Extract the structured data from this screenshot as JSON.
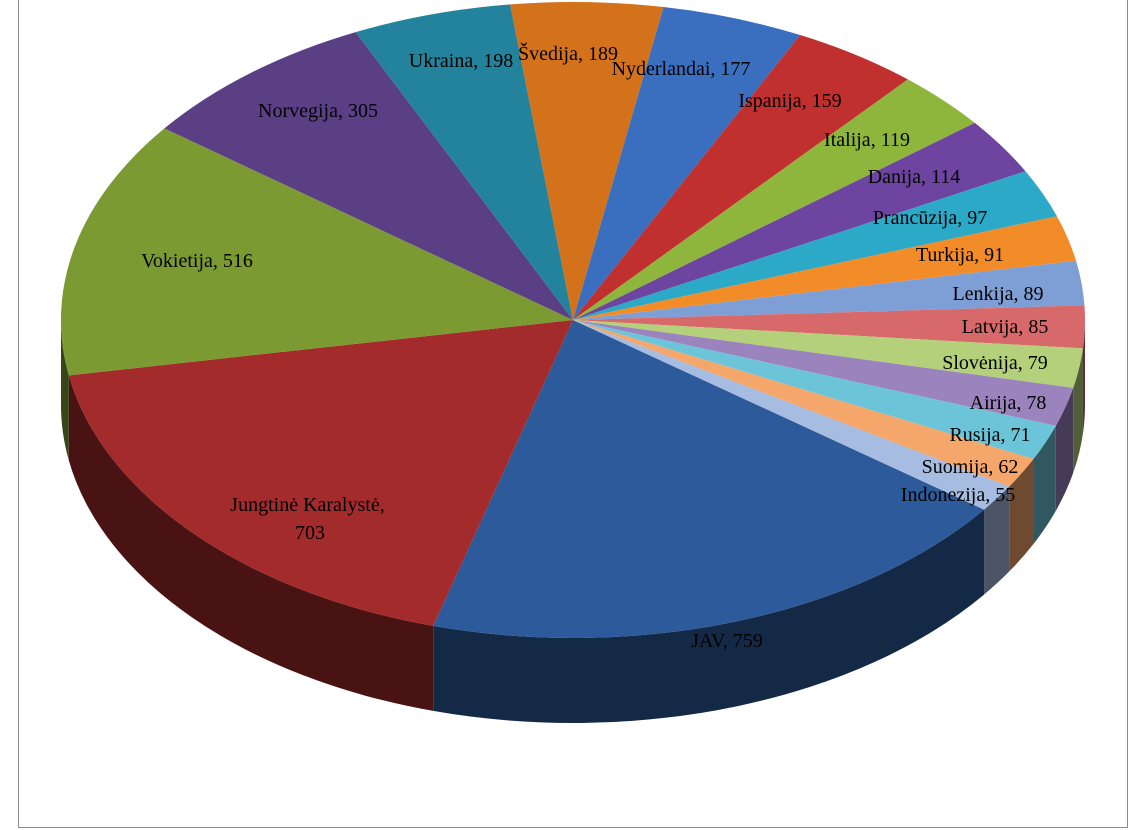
{
  "chart_data": {
    "type": "pie",
    "style": "3d",
    "slices": [
      {
        "label": "JAV",
        "value": 759,
        "color": "#2C5A9A"
      },
      {
        "label": "Jungtinė Karalystė",
        "value": 703,
        "color": "#A32B2B"
      },
      {
        "label": "Vokietija",
        "value": 516,
        "color": "#7C9A32"
      },
      {
        "label": "Norvegija",
        "value": 305,
        "color": "#5B3F85"
      },
      {
        "label": "Ukraina",
        "value": 198,
        "color": "#24839C"
      },
      {
        "label": "Švedija",
        "value": 189,
        "color": "#D4721C"
      },
      {
        "label": "Nyderlandai",
        "value": 177,
        "color": "#3A6EBE"
      },
      {
        "label": "Ispanija",
        "value": 159,
        "color": "#C0302E"
      },
      {
        "label": "Italija",
        "value": 119,
        "color": "#8FB63C"
      },
      {
        "label": "Danija",
        "value": 114,
        "color": "#6D44A0"
      },
      {
        "label": "Prancūzija",
        "value": 97,
        "color": "#2BA9C7"
      },
      {
        "label": "Turkija",
        "value": 91,
        "color": "#F28C28"
      },
      {
        "label": "Lenkija",
        "value": 89,
        "color": "#7E9FD6"
      },
      {
        "label": "Latvija",
        "value": 85,
        "color": "#D8696A"
      },
      {
        "label": "Slovėnija",
        "value": 79,
        "color": "#B5D07A"
      },
      {
        "label": "Airija",
        "value": 78,
        "color": "#9B84BE"
      },
      {
        "label": "Rusija",
        "value": 71,
        "color": "#6CC4D8"
      },
      {
        "label": "Suomija",
        "value": 62,
        "color": "#F5A66A"
      },
      {
        "label": "Indonezija",
        "value": 55,
        "color": "#A6BCE0"
      }
    ],
    "labels": [
      {
        "text": "JAV, 759"
      },
      {
        "line1": "Jungtinė Karalystė,",
        "line2": "703"
      },
      {
        "text": "Vokietija, 516"
      },
      {
        "text": "Norvegija, 305"
      },
      {
        "text": "Ukraina, 198"
      },
      {
        "text": "Švedija, 189"
      },
      {
        "text": "Nyderlandai, 177"
      },
      {
        "text": "Ispanija, 159"
      },
      {
        "text": "Italija, 119"
      },
      {
        "text": "Danija, 114"
      },
      {
        "text": "Prancūzija, 97"
      },
      {
        "text": "Turkija, 91"
      },
      {
        "text": "Lenkija, 89"
      },
      {
        "text": "Latvija, 85"
      },
      {
        "text": "Slovėnija, 79"
      },
      {
        "text": "Airija, 78"
      },
      {
        "text": "Rusija, 71"
      },
      {
        "text": "Suomija, 62"
      },
      {
        "text": "Indonezija, 55"
      }
    ]
  }
}
